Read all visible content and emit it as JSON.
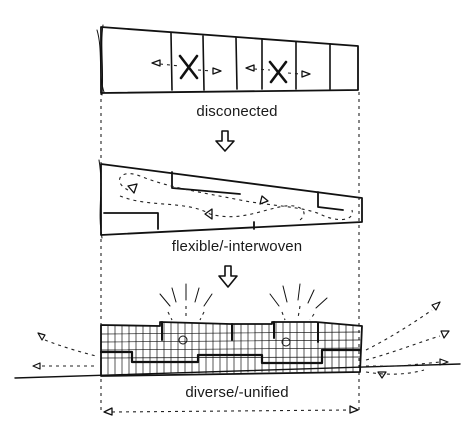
{
  "stages": [
    {
      "id": "stage-1",
      "caption": "disconected"
    },
    {
      "id": "stage-2",
      "caption": "flexible/-interwoven"
    },
    {
      "id": "stage-3",
      "caption": "diverse/-unified"
    }
  ],
  "colors": {
    "ink": "#111111",
    "background": "#ffffff"
  },
  "icons": [
    "cross-mark-icon",
    "arrow-down-icon",
    "arrow-left-icon",
    "arrow-right-icon"
  ]
}
